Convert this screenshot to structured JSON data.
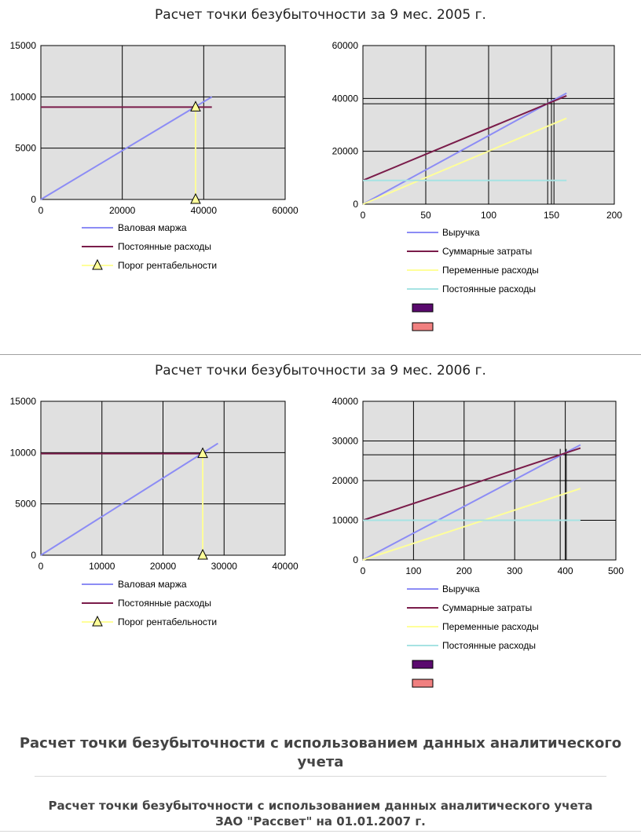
{
  "block1": {
    "title": "Расчет точки безубыточности за 9 мес. 2005 г.",
    "charts": []
  },
  "block2": {
    "title": "Расчет точки безубыточности за 9 мес. 2006 г.",
    "charts": []
  },
  "heading1": "Расчет точки безубыточности с использованием данных аналитического учета",
  "heading2_line1": "Расчет точки безубыточности с использованием данных аналитического учета",
  "heading2_line2": "ЗАО \"Рассвет\" на 01.01.2007 г.",
  "colors": {
    "plot_bg": "#e0e0e0",
    "grid": "#000000",
    "margin": "#8c8cf5",
    "revenue": "#8c8cf5",
    "fixed": "#7a1c4a",
    "total": "#7a1c4a",
    "variable": "#ffff99",
    "fixed_light": "#a6e3e3",
    "threshold": "#ffff99",
    "swatch1": "#5a0a6e",
    "swatch2": "#f08080"
  },
  "chart_data": [
    {
      "type": "line",
      "xlim": [
        0,
        60000
      ],
      "ylim": [
        0,
        15000
      ],
      "xticks": [
        "0",
        "20000",
        "40000",
        "60000"
      ],
      "yticks": [
        "0",
        "5000",
        "10000",
        "15000"
      ],
      "series": [
        {
          "name": "Валовая маржа",
          "color": "#8c8cf5",
          "points": [
            [
              0,
              0
            ],
            [
              42000,
              10000
            ]
          ]
        },
        {
          "name": "Постоянные расходы",
          "color": "#7a1c4a",
          "points": [
            [
              0,
              9000
            ],
            [
              42000,
              9000
            ]
          ]
        },
        {
          "name": "Порог рентабельности",
          "color": "#ffff99",
          "marker": "triangle",
          "points": [
            [
              38000,
              9000
            ],
            [
              38000,
              0
            ]
          ]
        }
      ],
      "extra_lines": [],
      "swatches": 0,
      "grid": true
    },
    {
      "type": "line",
      "xlim": [
        0,
        200
      ],
      "ylim": [
        0,
        60000
      ],
      "xticks": [
        "0",
        "50",
        "100",
        "150",
        "200"
      ],
      "yticks": [
        "0",
        "20000",
        "40000",
        "60000"
      ],
      "series": [
        {
          "name": "Выручка",
          "color": "#8c8cf5",
          "points": [
            [
              0,
              0
            ],
            [
              162,
              42000
            ]
          ]
        },
        {
          "name": "Суммарные затраты",
          "color": "#7a1c4a",
          "points": [
            [
              0,
              9000
            ],
            [
              162,
              41000
            ]
          ]
        },
        {
          "name": "Переменные расходы",
          "color": "#ffff99",
          "points": [
            [
              0,
              0
            ],
            [
              162,
              32500
            ]
          ]
        },
        {
          "name": "Постоянные расходы",
          "color": "#a6e3e3",
          "points": [
            [
              0,
              9000
            ],
            [
              162,
              9000
            ]
          ]
        }
      ],
      "extra_lines": [
        {
          "x1": 0,
          "y1": 38000,
          "x2": 200,
          "y2": 38000
        },
        {
          "x1": 147,
          "y1": 0,
          "x2": 147,
          "y2": 40000
        },
        {
          "x1": 152,
          "y1": 0,
          "x2": 152,
          "y2": 40000
        }
      ],
      "swatches": 2,
      "grid": true
    },
    {
      "type": "line",
      "xlim": [
        0,
        40000
      ],
      "ylim": [
        0,
        15000
      ],
      "xticks": [
        "0",
        "10000",
        "20000",
        "30000",
        "40000"
      ],
      "yticks": [
        "0",
        "5000",
        "10000",
        "15000"
      ],
      "series": [
        {
          "name": "Валовая маржа",
          "color": "#8c8cf5",
          "points": [
            [
              0,
              0
            ],
            [
              29000,
              10900
            ]
          ]
        },
        {
          "name": "Постоянные расходы",
          "color": "#7a1c4a",
          "points": [
            [
              0,
              9900
            ],
            [
              27000,
              9900
            ]
          ]
        },
        {
          "name": "Порог рентабельности",
          "color": "#ffff99",
          "marker": "triangle",
          "points": [
            [
              26500,
              9900
            ],
            [
              26500,
              0
            ]
          ]
        }
      ],
      "extra_lines": [],
      "swatches": 0,
      "grid": true
    },
    {
      "type": "line",
      "xlim": [
        0,
        500
      ],
      "ylim": [
        0,
        40000
      ],
      "xticks": [
        "0",
        "100",
        "200",
        "300",
        "400",
        "500"
      ],
      "yticks": [
        "0",
        "10000",
        "20000",
        "30000",
        "40000"
      ],
      "series": [
        {
          "name": "Выручка",
          "color": "#8c8cf5",
          "points": [
            [
              0,
              0
            ],
            [
              430,
              29000
            ]
          ]
        },
        {
          "name": "Суммарные затраты",
          "color": "#7a1c4a",
          "points": [
            [
              0,
              10000
            ],
            [
              430,
              28200
            ]
          ]
        },
        {
          "name": "Переменные расходы",
          "color": "#ffff99",
          "points": [
            [
              0,
              0
            ],
            [
              430,
              18000
            ]
          ]
        },
        {
          "name": "Постоянные расходы",
          "color": "#a6e3e3",
          "points": [
            [
              0,
              10000
            ],
            [
              430,
              10000
            ]
          ]
        }
      ],
      "extra_lines": [
        {
          "x1": 0,
          "y1": 26500,
          "x2": 500,
          "y2": 26500
        },
        {
          "x1": 390,
          "y1": 0,
          "x2": 390,
          "y2": 28000
        },
        {
          "x1": 402,
          "y1": 0,
          "x2": 402,
          "y2": 28000
        },
        {
          "x1": 430,
          "y1": 10000,
          "x2": 500,
          "y2": 10000
        }
      ],
      "swatches": 2,
      "grid": true
    }
  ]
}
